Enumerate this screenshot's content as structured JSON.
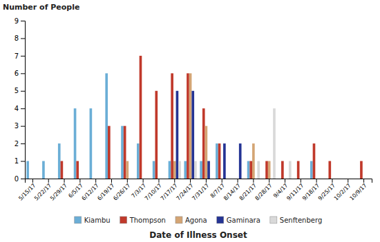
{
  "chart_data": {
    "type": "bar",
    "xlabel": "Date of Illness Onset",
    "ylabel": "Number of People",
    "categories": [
      "5/15/17",
      "5/22/17",
      "5/29/17",
      "6/5/17",
      "6/12/17",
      "6/19/17",
      "6/26/17",
      "7/3/17",
      "7/10/17",
      "7/17/17",
      "7/24/17",
      "7/31/17",
      "8/7/17",
      "8/14/17",
      "8/21/17",
      "8/28/17",
      "9/4/17",
      "9/11/17",
      "9/18/17",
      "9/25/17",
      "10/2/17",
      "10/9/17"
    ],
    "series": [
      {
        "name": "Kiambu",
        "color": "#6baed6",
        "values": [
          1,
          1,
          2,
          4,
          4,
          6,
          3,
          2,
          1,
          1,
          1,
          1,
          2,
          0,
          1,
          0,
          0,
          0,
          1,
          0,
          0,
          0
        ]
      },
      {
        "name": "Thompson",
        "color": "#c0392b",
        "values": [
          0,
          0,
          1,
          1,
          0,
          3,
          3,
          7,
          5,
          6,
          6,
          4,
          2,
          0,
          1,
          1,
          1,
          1,
          2,
          1,
          0,
          1
        ]
      },
      {
        "name": "Agona",
        "color": "#d4a574",
        "values": [
          0,
          0,
          0,
          0,
          0,
          0,
          1,
          0,
          0,
          1,
          6,
          3,
          0,
          0,
          2,
          1,
          0,
          0,
          0,
          0,
          0,
          0
        ]
      },
      {
        "name": "Gaminara",
        "color": "#253494",
        "values": [
          0,
          0,
          0,
          0,
          0,
          0,
          0,
          0,
          0,
          5,
          5,
          1,
          2,
          2,
          0,
          0,
          0,
          0,
          0,
          0,
          0,
          0
        ]
      },
      {
        "name": "Senftenberg",
        "color": "#d9d9d9",
        "values": [
          0,
          0,
          0,
          0,
          0,
          0,
          0,
          0,
          0,
          1,
          1,
          0,
          0,
          0,
          1,
          4,
          1,
          0,
          0,
          0,
          0,
          0
        ]
      }
    ],
    "ylim": [
      0,
      9
    ],
    "yticks": [
      0,
      1,
      2,
      3,
      4,
      5,
      6,
      7,
      8,
      9
    ],
    "grid": false,
    "legend": "bottom"
  }
}
